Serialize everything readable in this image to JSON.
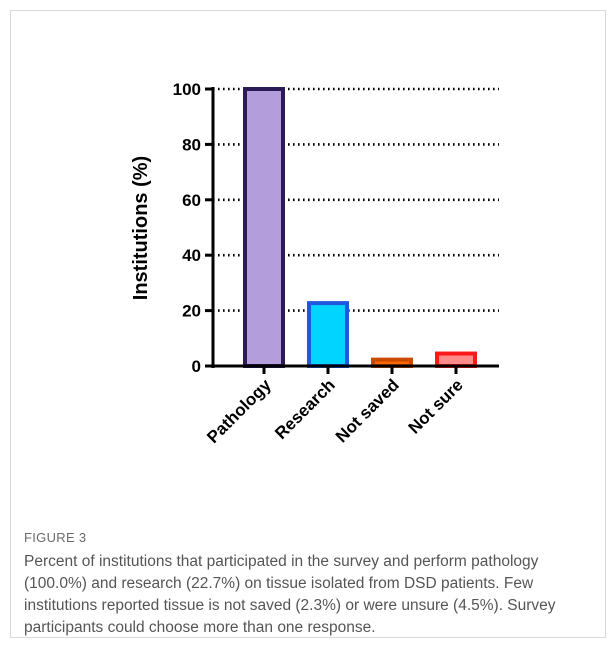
{
  "figure": {
    "label": "FIGURE 3",
    "caption": "Percent of institutions that participated in the survey and perform pathology (100.0%) and research (22.7%) on tissue isolated from DSD patients. Few institutions reported tissue is not saved (2.3%) or were unsure (4.5%). Survey participants could choose more than one response."
  },
  "chart_data": {
    "type": "bar",
    "title": "",
    "xlabel": "",
    "ylabel": "Institutions (%)",
    "categories": [
      "Pathology",
      "Research",
      "Not saved",
      "Not sure"
    ],
    "values": [
      100.0,
      22.7,
      2.3,
      4.5
    ],
    "ylim": [
      0,
      100
    ],
    "yticks": [
      0,
      20,
      40,
      60,
      80,
      100
    ],
    "grid": "horizontal-dotted",
    "colors": {
      "fills": [
        "#b39ddb",
        "#00d4ff",
        "#ff6a00",
        "#ff8a8a"
      ],
      "strokes": [
        "#2b1a55",
        "#1f57e0",
        "#cc4a00",
        "#ff1a1a"
      ],
      "axis": "#000000",
      "grid": "#000000"
    }
  }
}
